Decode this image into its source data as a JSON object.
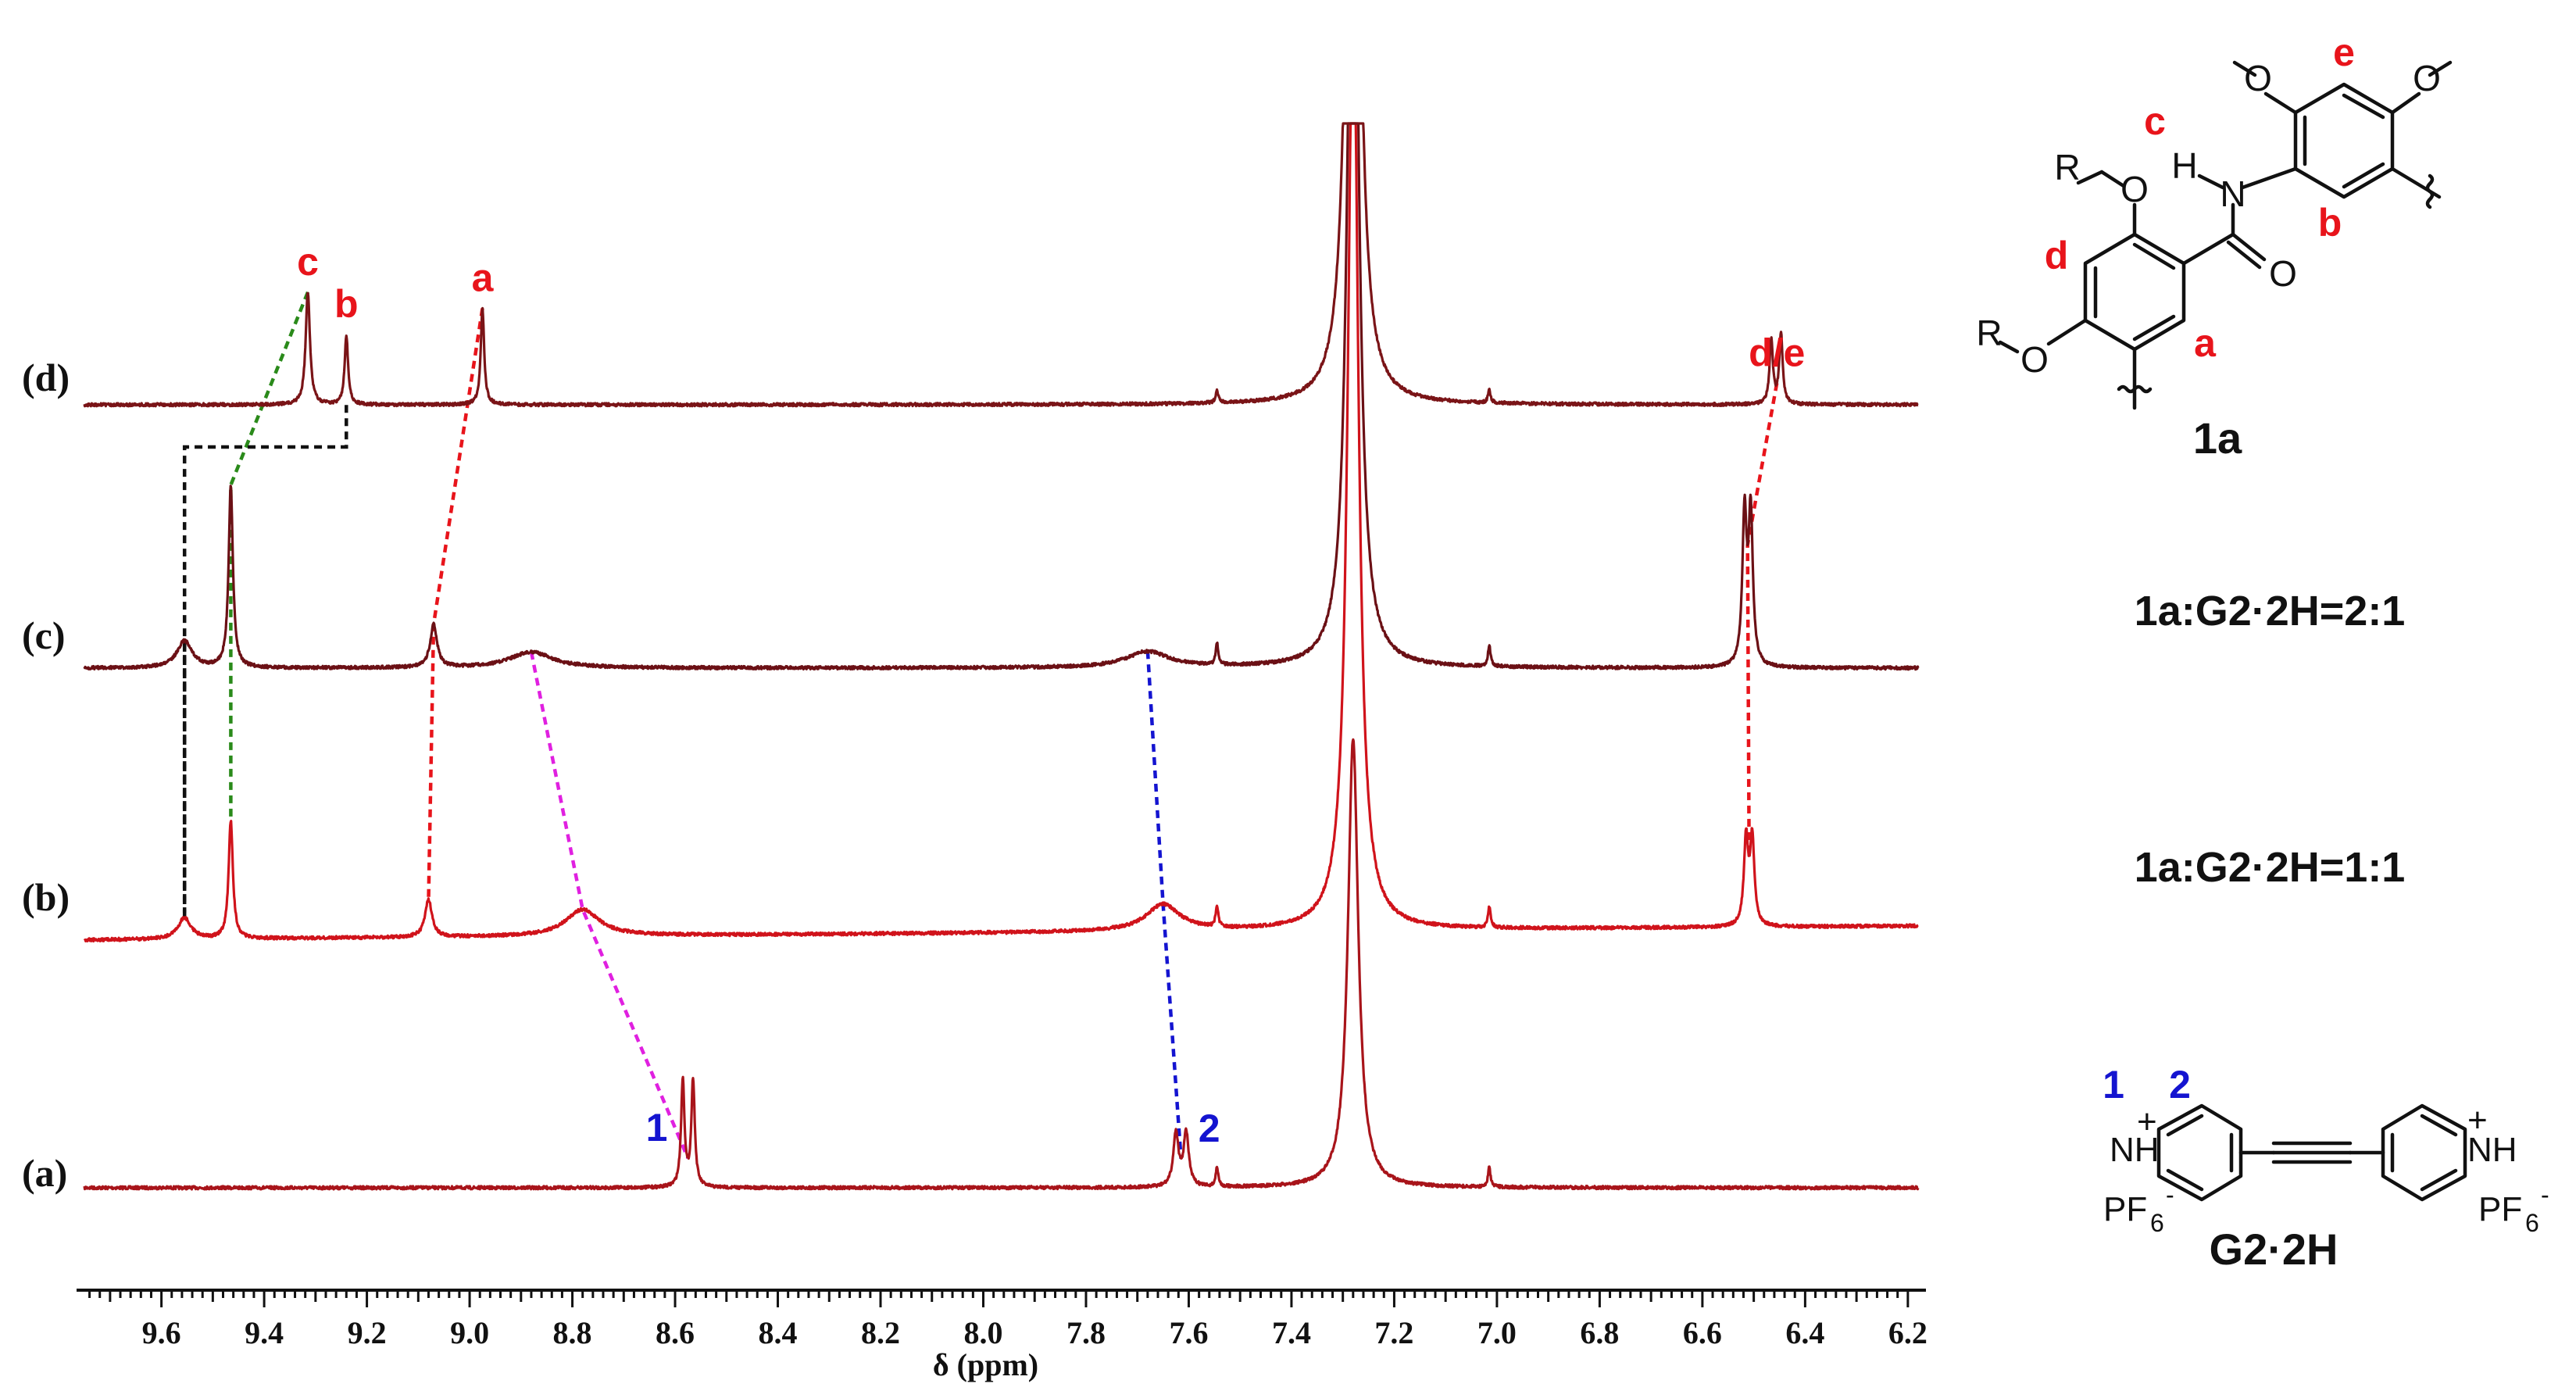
{
  "chart_data": {
    "type": "line",
    "title": "",
    "xlabel": "δ (ppm)",
    "ylabel": "",
    "xlim": [
      9.75,
      6.18
    ],
    "x_reversed": true,
    "grid": false,
    "xticks": [
      "9.6",
      "9.4",
      "9.2",
      "9.0",
      "8.8",
      "8.6",
      "8.4",
      "8.2",
      "8.0",
      "7.8",
      "7.6",
      "7.4",
      "7.2",
      "7.0",
      "6.8",
      "6.6",
      "6.4",
      "6.2"
    ],
    "xtick_values": [
      9.6,
      9.4,
      9.2,
      9.0,
      8.8,
      8.6,
      8.4,
      8.2,
      8.0,
      7.8,
      7.6,
      7.4,
      7.2,
      7.0,
      6.8,
      6.6,
      6.4,
      6.2
    ],
    "series": [
      {
        "name": "(a)",
        "color": "#A8141A",
        "peaks": [
          {
            "x": 8.585,
            "h": 0.1,
            "w": 0.004
          },
          {
            "x": 8.565,
            "h": 0.1,
            "w": 0.004
          },
          {
            "x": 7.625,
            "h": 0.05,
            "w": 0.006
          },
          {
            "x": 7.605,
            "h": 0.05,
            "w": 0.006
          },
          {
            "x": 7.545,
            "h": 0.018,
            "w": 0.003
          },
          {
            "x": 7.28,
            "h": 0.42,
            "w": 0.012
          },
          {
            "x": 7.015,
            "h": 0.018,
            "w": 0.003
          }
        ]
      },
      {
        "name": "(b)",
        "color": "#D0131B",
        "peaks": [
          {
            "x": 9.555,
            "h": 0.02,
            "w": 0.015
          },
          {
            "x": 9.465,
            "h": 0.11,
            "w": 0.005
          },
          {
            "x": 9.08,
            "h": 0.035,
            "w": 0.008
          },
          {
            "x": 8.78,
            "h": 0.025,
            "w": 0.04
          },
          {
            "x": 7.65,
            "h": 0.025,
            "w": 0.04
          },
          {
            "x": 7.545,
            "h": 0.02,
            "w": 0.003
          },
          {
            "x": 7.28,
            "h": 0.9,
            "w": 0.012
          },
          {
            "x": 7.015,
            "h": 0.02,
            "w": 0.003
          },
          {
            "x": 6.515,
            "h": 0.08,
            "w": 0.005
          },
          {
            "x": 6.503,
            "h": 0.08,
            "w": 0.005
          }
        ]
      },
      {
        "name": "(c)",
        "color": "#6B1015",
        "peaks": [
          {
            "x": 9.555,
            "h": 0.025,
            "w": 0.018
          },
          {
            "x": 9.465,
            "h": 0.17,
            "w": 0.005
          },
          {
            "x": 9.07,
            "h": 0.04,
            "w": 0.008
          },
          {
            "x": 8.88,
            "h": 0.015,
            "w": 0.05
          },
          {
            "x": 7.68,
            "h": 0.015,
            "w": 0.05
          },
          {
            "x": 7.545,
            "h": 0.02,
            "w": 0.003
          },
          {
            "x": 7.28,
            "h": 0.88,
            "w": 0.012
          },
          {
            "x": 7.015,
            "h": 0.02,
            "w": 0.003
          },
          {
            "x": 6.518,
            "h": 0.14,
            "w": 0.005
          },
          {
            "x": 6.506,
            "h": 0.14,
            "w": 0.005
          }
        ]
      },
      {
        "name": "(d)",
        "color": "#7A1417",
        "peaks": [
          {
            "x": 9.315,
            "h": 0.105,
            "w": 0.005
          },
          {
            "x": 9.24,
            "h": 0.065,
            "w": 0.004
          },
          {
            "x": 8.975,
            "h": 0.09,
            "w": 0.004
          },
          {
            "x": 7.545,
            "h": 0.012,
            "w": 0.003
          },
          {
            "x": 7.28,
            "h": 1.0,
            "w": 0.012
          },
          {
            "x": 7.015,
            "h": 0.012,
            "w": 0.003
          },
          {
            "x": 6.466,
            "h": 0.06,
            "w": 0.004
          },
          {
            "x": 6.447,
            "h": 0.065,
            "w": 0.004
          }
        ]
      }
    ],
    "peak_labels": [
      {
        "text": "c",
        "x": 9.315,
        "series": "(d)",
        "color": "#E8141B"
      },
      {
        "text": "b",
        "x": 9.24,
        "series": "(d)",
        "color": "#E8141B"
      },
      {
        "text": "a",
        "x": 8.975,
        "series": "(d)",
        "color": "#E8141B"
      },
      {
        "text": "d/e",
        "x": 6.455,
        "series": "(d)",
        "color": "#E8141B"
      },
      {
        "text": "1",
        "x": 8.575,
        "series": "(a)",
        "color": "#1414D0"
      },
      {
        "text": "2",
        "x": 7.615,
        "series": "(a)",
        "color": "#1414D0"
      }
    ],
    "correlations": [
      {
        "color": "#E8141B",
        "points": [
          [
            8.975,
            "(d)"
          ],
          [
            9.07,
            "(c)"
          ],
          [
            9.08,
            "(b)"
          ]
        ]
      },
      {
        "color": "#E8141B",
        "points": [
          [
            6.455,
            "(d)"
          ],
          [
            6.512,
            "(c)"
          ],
          [
            6.509,
            "(b)"
          ]
        ]
      },
      {
        "color": "#2A8A1A",
        "points": [
          [
            9.315,
            "(d)"
          ],
          [
            9.465,
            "(c)"
          ],
          [
            9.465,
            "(b)"
          ]
        ]
      },
      {
        "color": "#E020E0",
        "points": [
          [
            8.88,
            "(c)"
          ],
          [
            8.78,
            "(b)"
          ],
          [
            8.575,
            "(a)"
          ]
        ]
      },
      {
        "color": "#1414D0",
        "points": [
          [
            7.68,
            "(c)"
          ],
          [
            7.65,
            "(b)"
          ],
          [
            7.615,
            "(a)"
          ]
        ]
      },
      {
        "color": "#111111",
        "points": [
          [
            9.555,
            "(b)"
          ],
          [
            9.555,
            "(c)"
          ]
        ]
      }
    ]
  },
  "trace_labels": {
    "a": "(a)",
    "b": "(b)",
    "c": "(c)",
    "d": "(d)"
  },
  "ratio_labels": {
    "c": "1a:G2·2H=2:1",
    "b": "1a:G2·2H=1:1"
  },
  "compound_1a": {
    "name": "1a",
    "atoms": {
      "R1": "R",
      "O1": "O",
      "R2": "R",
      "O2": "O",
      "N": "N",
      "H": "H",
      "O_carbonyl": "O",
      "O_me1": "O",
      "O_me2": "O"
    },
    "labels": [
      "c",
      "e",
      "d",
      "b",
      "a"
    ]
  },
  "compound_g2": {
    "name": "G2·2H",
    "atoms": {
      "NH_left": "NH",
      "NH_right": "NH",
      "plus": "+",
      "PF6_left": "PF",
      "PF6_right": "PF",
      "sub6": "6",
      "minus": "-"
    },
    "labels": [
      "1",
      "2"
    ]
  }
}
